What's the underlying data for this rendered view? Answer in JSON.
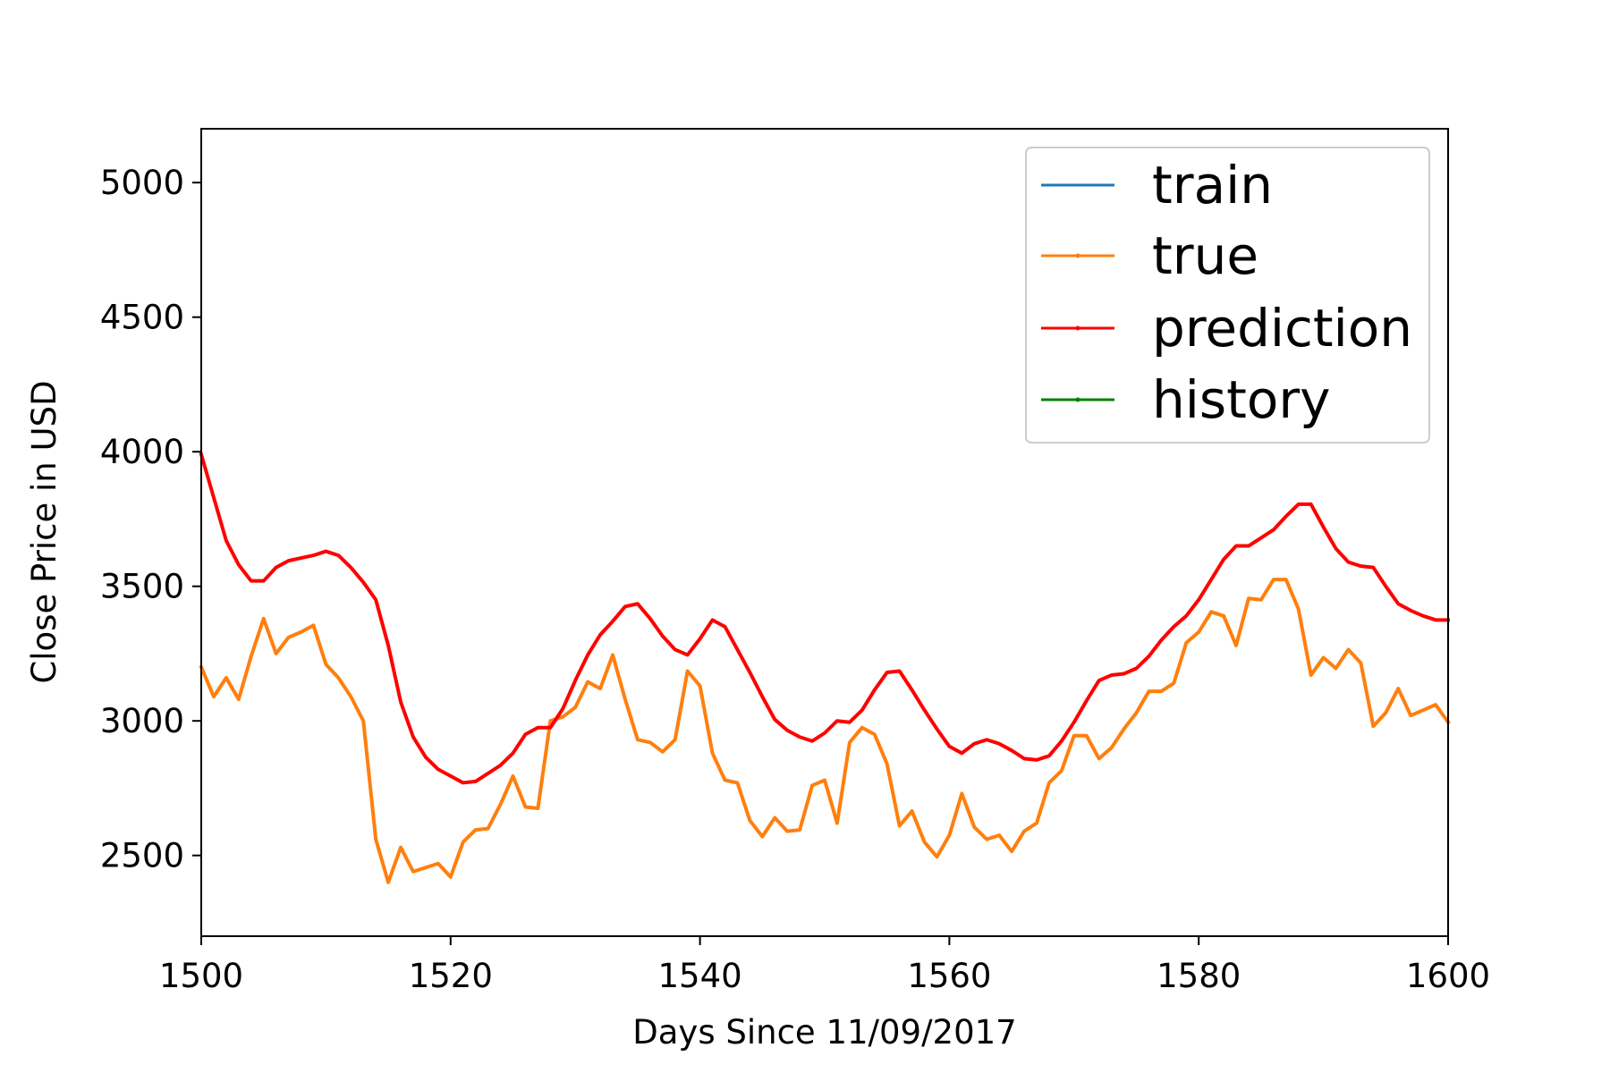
{
  "chart_data": {
    "type": "line",
    "xlabel": "Days Since 11/09/2017",
    "ylabel": "Close Price in USD",
    "xlim": [
      1500,
      1600
    ],
    "ylim": [
      2200,
      5200
    ],
    "x_ticks": [
      1500,
      1520,
      1540,
      1560,
      1580,
      1600
    ],
    "y_ticks": [
      2500,
      3000,
      3500,
      4000,
      4500,
      5000
    ],
    "grid": false,
    "legend_position": "top-right",
    "legend": [
      "train",
      "true",
      "prediction",
      "history"
    ],
    "x_start": 1500,
    "series": [
      {
        "name": "train",
        "color": "#1f77b4",
        "values": []
      },
      {
        "name": "true",
        "color": "#ff7f0e",
        "values": [
          3200,
          3090,
          3160,
          3080,
          3240,
          3380,
          3250,
          3310,
          3330,
          3355,
          3210,
          3160,
          3090,
          3000,
          2560,
          2400,
          2530,
          2440,
          2455,
          2470,
          2420,
          2550,
          2595,
          2600,
          2690,
          2795,
          2680,
          2675,
          3000,
          3015,
          3050,
          3145,
          3120,
          3245,
          3080,
          2930,
          2920,
          2885,
          2930,
          3185,
          3130,
          2880,
          2780,
          2770,
          2630,
          2570,
          2640,
          2590,
          2595,
          2760,
          2780,
          2620,
          2920,
          2975,
          2950,
          2840,
          2610,
          2665,
          2550,
          2495,
          2575,
          2730,
          2605,
          2560,
          2575,
          2515,
          2590,
          2620,
          2770,
          2815,
          2945,
          2945,
          2860,
          2900,
          2970,
          3030,
          3110,
          3110,
          3140,
          3290,
          3330,
          3405,
          3390,
          3280,
          3455,
          3450,
          3525,
          3525,
          3415,
          3170,
          3235,
          3195,
          3265,
          3215,
          2980,
          3030,
          3120,
          3020,
          3040,
          3060,
          2995
        ]
      },
      {
        "name": "prediction",
        "color": "#ff0000",
        "values": [
          3990,
          3830,
          3670,
          3580,
          3520,
          3520,
          3570,
          3595,
          3605,
          3615,
          3630,
          3615,
          3570,
          3515,
          3450,
          3280,
          3070,
          2940,
          2865,
          2820,
          2795,
          2770,
          2775,
          2805,
          2835,
          2880,
          2950,
          2975,
          2975,
          3045,
          3150,
          3245,
          3320,
          3370,
          3425,
          3435,
          3380,
          3315,
          3265,
          3245,
          3305,
          3375,
          3350,
          3265,
          3180,
          3090,
          3005,
          2965,
          2940,
          2925,
          2955,
          3000,
          2995,
          3040,
          3115,
          3180,
          3185,
          3115,
          3040,
          2970,
          2905,
          2880,
          2915,
          2930,
          2915,
          2890,
          2860,
          2855,
          2870,
          2925,
          2995,
          3075,
          3150,
          3170,
          3175,
          3195,
          3240,
          3300,
          3350,
          3390,
          3450,
          3525,
          3600,
          3650,
          3650,
          3680,
          3710,
          3760,
          3805,
          3805,
          3720,
          3640,
          3590,
          3575,
          3570,
          3500,
          3435,
          3410,
          3390,
          3375,
          3375
        ]
      },
      {
        "name": "history",
        "color": "#008000",
        "values": []
      }
    ]
  }
}
